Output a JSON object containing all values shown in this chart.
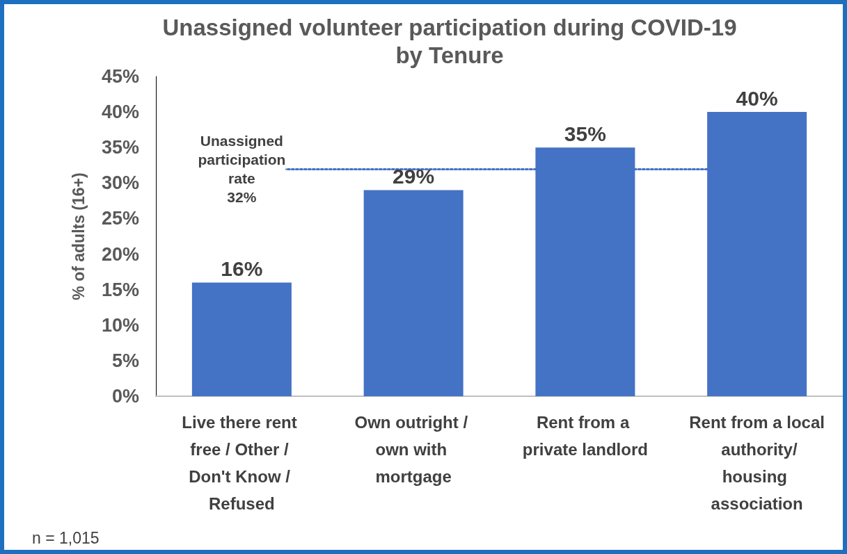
{
  "chart_data": {
    "type": "bar",
    "title": "Unassigned volunteer participation during COVID-19\nby Tenure",
    "ylabel": "% of adults (16+)",
    "categories": [
      "Live there rent free / Other / Don't Know / Refused",
      "Own outright / own with mortgage",
      "Rent from a private landlord",
      "Rent from a local authority/housing association"
    ],
    "values": [
      16,
      29,
      35,
      40
    ],
    "value_labels": [
      "16%",
      "29%",
      "35%",
      "40%"
    ],
    "color": "#4472c4",
    "ylim": [
      0,
      45
    ],
    "yticks": [
      {
        "value": 0,
        "label": "0%"
      },
      {
        "value": 5,
        "label": "5%"
      },
      {
        "value": 10,
        "label": "10%"
      },
      {
        "value": 15,
        "label": "15%"
      },
      {
        "value": 20,
        "label": "20%"
      },
      {
        "value": 25,
        "label": "25%"
      },
      {
        "value": 30,
        "label": "30%"
      },
      {
        "value": 35,
        "label": "35%"
      },
      {
        "value": 40,
        "label": "40%"
      },
      {
        "value": 45,
        "label": "45%"
      }
    ],
    "ref_lines": [
      {
        "axis": "y",
        "value": 32,
        "label": "Unassigned\nparticipation\nrate\n32%",
        "color": "#4472c4",
        "line_style": "dotted"
      }
    ],
    "annotations": [
      "n = 1,015"
    ],
    "grid": false
  }
}
